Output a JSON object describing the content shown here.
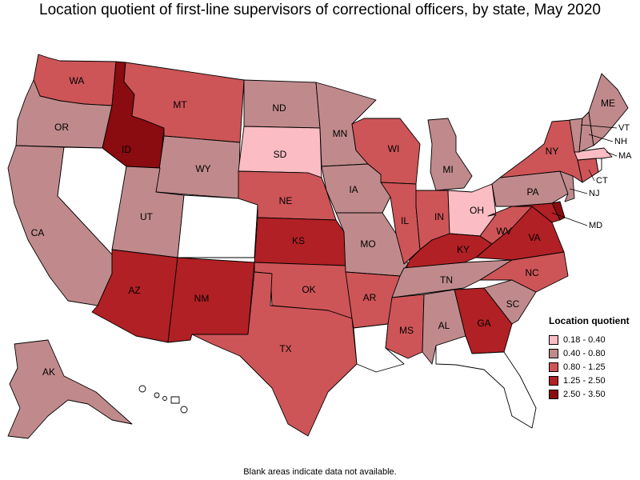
{
  "title": "Location quotient of first-line supervisors of correctional officers, by state, May 2020",
  "footnote": "Blank areas indicate data not available.",
  "legend": {
    "title": "Location quotient",
    "items": [
      {
        "label": "0.18 - 0.40",
        "color": "#fbbcc3"
      },
      {
        "label": "0.40 - 0.80",
        "color": "#c08a8c"
      },
      {
        "label": "0.80 - 1.25",
        "color": "#cd5557"
      },
      {
        "label": "1.25 - 2.50",
        "color": "#b12024"
      },
      {
        "label": "2.50 - 3.50",
        "color": "#8a0b10"
      }
    ]
  },
  "colors": {
    "no_data": "#ffffff"
  },
  "chart_data": {
    "type": "choropleth",
    "title": "Location quotient of first-line supervisors of correctional officers, by state, May 2020",
    "legend_position": "bottom-right",
    "classes": [
      "0.18 - 0.40",
      "0.40 - 0.80",
      "0.80 - 1.25",
      "1.25 - 2.50",
      "2.50 - 3.50"
    ],
    "states": {
      "WA": "0.80 - 1.25",
      "OR": "0.40 - 0.80",
      "CA": "0.40 - 0.80",
      "NV": null,
      "ID": "2.50 - 3.50",
      "MT": "0.80 - 1.25",
      "WY": "0.40 - 0.80",
      "UT": "0.40 - 0.80",
      "AZ": "1.25 - 2.50",
      "CO": null,
      "NM": "1.25 - 2.50",
      "ND": "0.40 - 0.80",
      "SD": "0.18 - 0.40",
      "NE": "0.80 - 1.25",
      "KS": "1.25 - 2.50",
      "OK": "0.80 - 1.25",
      "TX": "0.80 - 1.25",
      "MN": "0.40 - 0.80",
      "IA": "0.40 - 0.80",
      "MO": "0.40 - 0.80",
      "AR": "0.80 - 1.25",
      "LA": null,
      "WI": "0.80 - 1.25",
      "IL": "0.80 - 1.25",
      "MI": "0.40 - 0.80",
      "IN": "0.80 - 1.25",
      "OH": "0.18 - 0.40",
      "KY": "1.25 - 2.50",
      "TN": "0.40 - 0.80",
      "MS": "0.80 - 1.25",
      "AL": "0.40 - 0.80",
      "GA": "1.25 - 2.50",
      "FL": null,
      "SC": "0.40 - 0.80",
      "NC": "0.80 - 1.25",
      "VA": "1.25 - 2.50",
      "WV": "0.80 - 1.25",
      "MD": "1.25 - 2.50",
      "DE": "2.50 - 3.50",
      "NJ": "0.40 - 0.80",
      "PA": "0.40 - 0.80",
      "NY": "0.80 - 1.25",
      "CT": "0.80 - 1.25",
      "RI": null,
      "MA": "0.18 - 0.40",
      "VT": "0.40 - 0.80",
      "NH": "0.40 - 0.80",
      "ME": "0.40 - 0.80",
      "AK": "0.40 - 0.80",
      "HI": null
    },
    "labels": [
      "WA",
      "OR",
      "CA",
      "ID",
      "MT",
      "WY",
      "UT",
      "AZ",
      "NM",
      "ND",
      "SD",
      "NE",
      "KS",
      "OK",
      "TX",
      "MN",
      "IA",
      "MO",
      "AR",
      "WI",
      "IL",
      "MI",
      "IN",
      "OH",
      "KY",
      "TN",
      "MS",
      "AL",
      "GA",
      "SC",
      "NC",
      "VA",
      "WV",
      "PA",
      "NY",
      "ME",
      "AK",
      "VT",
      "NH",
      "MA",
      "CT",
      "NJ",
      "MD"
    ]
  }
}
